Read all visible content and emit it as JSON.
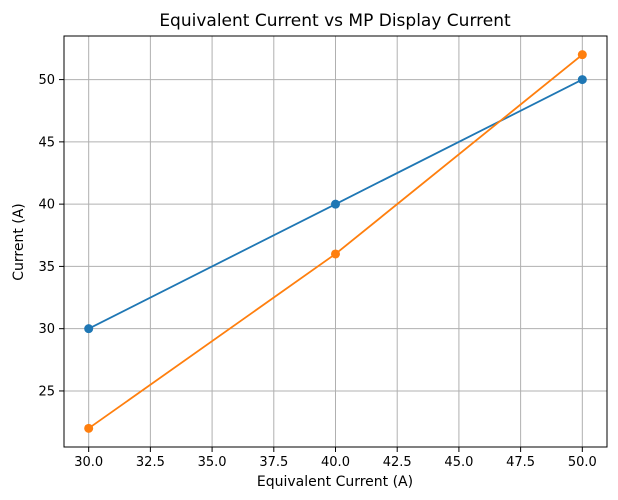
{
  "chart_data": {
    "type": "line",
    "title": "Equivalent Current vs MP Display Current",
    "xlabel": "Equivalent Current (A)",
    "ylabel": "Current (A)",
    "xlim": [
      29.0,
      51.0
    ],
    "ylim": [
      20.5,
      53.5
    ],
    "xticks": [
      30.0,
      32.5,
      35.0,
      37.5,
      40.0,
      42.5,
      45.0,
      47.5,
      50.0
    ],
    "xtick_labels": [
      "30.0",
      "32.5",
      "35.0",
      "37.5",
      "40.0",
      "42.5",
      "45.0",
      "47.5",
      "50.0"
    ],
    "yticks": [
      25,
      30,
      35,
      40,
      45,
      50
    ],
    "ytick_labels": [
      "25",
      "30",
      "35",
      "40",
      "45",
      "50"
    ],
    "grid": true,
    "legend": false,
    "series": [
      {
        "color": "#1f77b4",
        "x": [
          30,
          40,
          50
        ],
        "y": [
          30,
          40,
          50
        ]
      },
      {
        "color": "#ff7f0e",
        "x": [
          30,
          40,
          50
        ],
        "y": [
          22,
          36,
          52
        ]
      }
    ]
  }
}
